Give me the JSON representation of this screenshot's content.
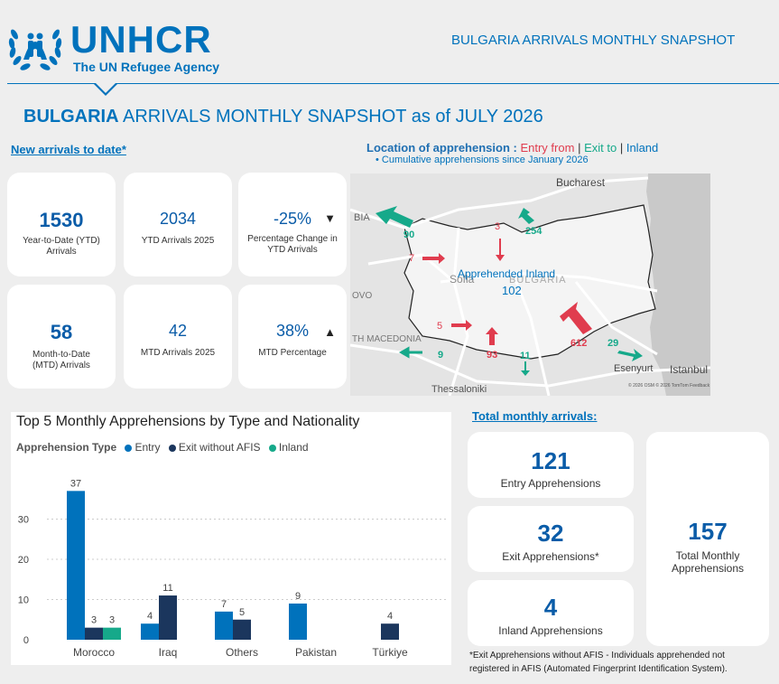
{
  "header": {
    "logo_word": "UNHCR",
    "logo_sub": "The UN Refugee Agency",
    "right_title": "BULGARIA ARRIVALS MONTHLY SNAPSHOT"
  },
  "title": {
    "country": "BULGARIA",
    "rest": " ARRIVALS MONTHLY SNAPSHOT as of JULY 2026"
  },
  "new_arrivals": {
    "heading": "New arrivals to date*",
    "cards": [
      {
        "value": "1530",
        "label": "Year-to-Date (YTD) Arrivals"
      },
      {
        "value": "2034",
        "label": "YTD Arrivals 2025"
      },
      {
        "value": "-25%",
        "label": "Percentage Change in YTD Arrivals",
        "trend": "▼"
      },
      {
        "value": "58",
        "label": "Month-to-Date (MTD) Arrivals"
      },
      {
        "value": "42",
        "label": "MTD Arrivals 2025"
      },
      {
        "value": "38%",
        "label": "MTD Percentage",
        "trend": "▲"
      }
    ]
  },
  "map": {
    "heading": "Location of apprehension :",
    "entry": "Entry from",
    "sep": "|",
    "exit": "Exit to",
    "inland": "Inland",
    "subheading": "• Cumulative apprehensions since January 2026",
    "place_labels": [
      "Bucharest",
      "BIA",
      "Sofia",
      "BULGARIA",
      "TH MACEDONIA",
      "Thessaloniki",
      "Esenyurt",
      "Istanbul",
      "OVO"
    ],
    "inland_label": "Apprehended Inland",
    "inland_value": "102",
    "arrow_values": {
      "nw_exit": "90",
      "n_entry": "3",
      "n_exit": "254",
      "w_entry": "7",
      "sw_entry": "5",
      "sw_exit": "9",
      "s_entry": "93",
      "s_exit": "11",
      "se_entry": "612",
      "se_exit": "29"
    },
    "attribution": "© 2026 OSM © 2026 TomTom  Feedback"
  },
  "chart_data": {
    "type": "bar",
    "title": "Top 5 Monthly Apprehensions by Type and Nationality",
    "legend_title": "Apprehension Type",
    "categories": [
      "Morocco",
      "Iraq",
      "Others",
      "Pakistan",
      "Türkiye"
    ],
    "series": [
      {
        "name": "Entry",
        "values": [
          37,
          4,
          7,
          9,
          null
        ],
        "color": "#0072bc"
      },
      {
        "name": "Exit without AFIS",
        "values": [
          3,
          11,
          5,
          null,
          4
        ],
        "color": "#1b365d"
      },
      {
        "name": "Inland",
        "values": [
          3,
          null,
          null,
          null,
          null
        ],
        "color": "#16a98a"
      }
    ],
    "ylim": [
      0,
      40
    ],
    "yticks": [
      0,
      10,
      20,
      30
    ],
    "grid": true,
    "legend_position": "top-left"
  },
  "totals": {
    "heading": "Total monthly arrivals:",
    "entry": {
      "value": "121",
      "label": "Entry Apprehensions"
    },
    "exit": {
      "value": "32",
      "label": "Exit Apprehensions*"
    },
    "inland": {
      "value": "4",
      "label": "Inland Apprehensions"
    },
    "total": {
      "value": "157",
      "label": "Total Monthly Apprehensions"
    }
  },
  "footnote": "*Exit Apprehensions without AFIS - Individuals apprehended not registered in AFIS (Automated Fingerprint Identification System)."
}
